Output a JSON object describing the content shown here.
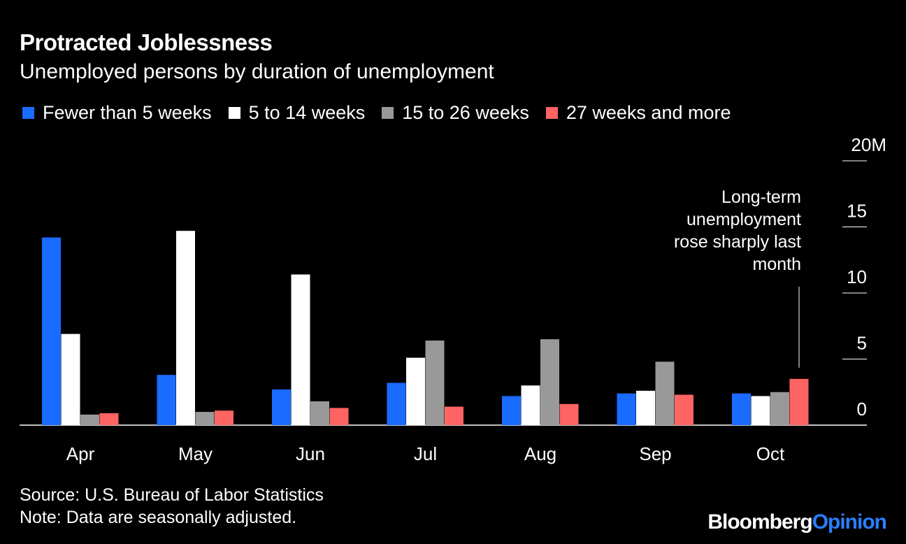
{
  "header": {
    "title": "Protracted Joblessness",
    "subtitle": "Unemployed persons by duration of unemployment"
  },
  "annotation": {
    "text_lines": [
      "Long-term",
      "unemployment",
      "rose sharply last",
      "month"
    ]
  },
  "footer": {
    "source": "Source: U.S. Bureau of Labor Statistics",
    "note": "Note: Data are seasonally adjusted."
  },
  "brand": {
    "part1": "Bloomberg",
    "part2": "Opinion"
  },
  "colors": {
    "background": "#000000",
    "series": [
      "#1a6bff",
      "#ffffff",
      "#999999",
      "#ff6464"
    ]
  },
  "chart_data": {
    "type": "bar",
    "categories": [
      "Apr",
      "May",
      "Jun",
      "Jul",
      "Aug",
      "Sep",
      "Oct"
    ],
    "series": [
      {
        "name": "Fewer than 5 weeks",
        "values": [
          14.2,
          3.8,
          2.7,
          3.2,
          2.2,
          2.4,
          2.4
        ]
      },
      {
        "name": "5 to 14 weeks",
        "values": [
          6.9,
          14.7,
          11.4,
          5.1,
          3.0,
          2.6,
          2.2
        ]
      },
      {
        "name": "15 to 26 weeks",
        "values": [
          0.8,
          1.0,
          1.8,
          6.4,
          6.5,
          4.8,
          2.5
        ]
      },
      {
        "name": "27 weeks and more",
        "values": [
          0.9,
          1.1,
          1.3,
          1.4,
          1.6,
          2.3,
          3.5
        ]
      }
    ],
    "y_ticks": [
      {
        "value": 20,
        "label": "20M"
      },
      {
        "value": 15,
        "label": "15"
      },
      {
        "value": 10,
        "label": "10"
      },
      {
        "value": 5,
        "label": "5"
      },
      {
        "value": 0,
        "label": "0"
      }
    ],
    "ylim": [
      0,
      20
    ],
    "title": "Protracted Joblessness",
    "subtitle": "Unemployed persons by duration of unemployment",
    "xlabel": "",
    "ylabel": "",
    "legend": "top",
    "y_axis_side": "right"
  }
}
